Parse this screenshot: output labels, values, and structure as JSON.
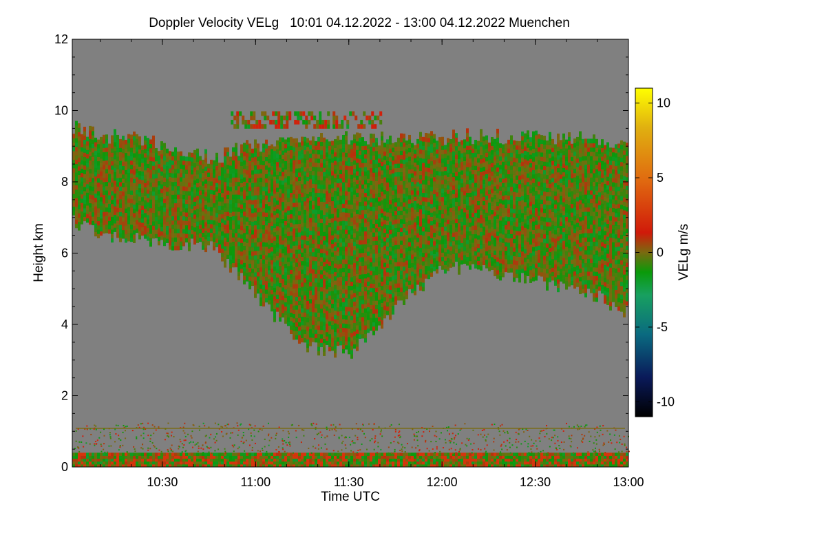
{
  "chart_data": {
    "type": "heatmap",
    "title": "Doppler Velocity VELg   10:01 04.12.2022 - 13:00 04.12.2022 Muenchen",
    "xlabel": "Time UTC",
    "ylabel": "Height km",
    "colorbar_label": "VELg m/s",
    "x_range": [
      "10:01",
      "13:00"
    ],
    "x_ticks": [
      "10:30",
      "11:00",
      "11:30",
      "12:00",
      "12:30",
      "13:00"
    ],
    "ylim": [
      0,
      12
    ],
    "y_ticks": [
      "0",
      "2",
      "4",
      "6",
      "8",
      "10",
      "12"
    ],
    "colorbar_range": [
      -11,
      11
    ],
    "colorbar_ticks": [
      "10",
      "5",
      "0",
      "-5",
      "-10"
    ],
    "colormap": [
      "#000000",
      "#0a1a5a",
      "#0a6a80",
      "#18a060",
      "#0a9a0a",
      "#7a6a10",
      "#d01a0a",
      "#e06a10",
      "#e0b010",
      "#ffff00"
    ],
    "background_color": "#808080",
    "features": {
      "cloud_layer_km": {
        "x": [
          "10:01",
          "10:10",
          "10:20",
          "10:30",
          "10:45",
          "11:00",
          "11:15",
          "11:30",
          "11:45",
          "12:00",
          "12:15",
          "12:30",
          "12:45",
          "13:00"
        ],
        "top": [
          9.5,
          9.2,
          9.3,
          9.0,
          8.6,
          9.0,
          9.2,
          9.2,
          9.1,
          9.2,
          9.2,
          9.2,
          9.2,
          9.0
        ],
        "base": [
          6.9,
          6.5,
          6.4,
          6.3,
          6.2,
          4.8,
          3.4,
          3.2,
          4.5,
          5.6,
          5.5,
          5.2,
          5.0,
          4.3
        ]
      },
      "high_patch_km": [
        9.5,
        9.9
      ],
      "typical_velocity_ms": [
        -2,
        1
      ],
      "near_surface_layer_km": [
        0.0,
        0.35
      ],
      "noise_line_km": 1.1
    }
  }
}
